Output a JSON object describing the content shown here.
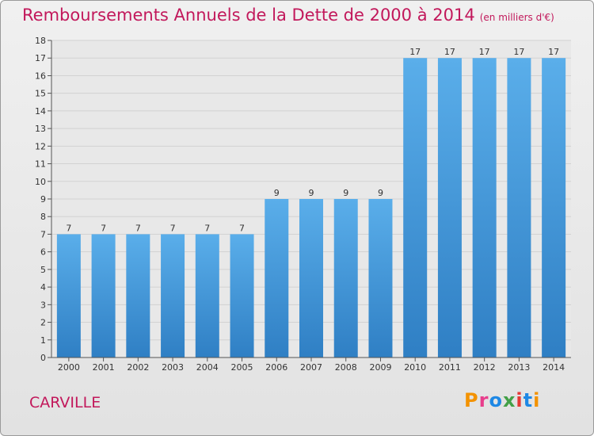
{
  "title": "Remboursements Annuels de la Dette de 2000 à 2014",
  "unit_note": "(en milliers d'€)",
  "city": "CARVILLE",
  "logo": [
    "P",
    "r",
    "o",
    "x",
    "i",
    "t",
    "i"
  ],
  "colors": {
    "bar": "#4a9de0",
    "title": "#c2185b"
  },
  "chart_data": {
    "type": "bar",
    "title": "Remboursements Annuels de la Dette de 2000 à 2014",
    "xlabel": "",
    "ylabel": "",
    "ylim": [
      0,
      18
    ],
    "yticks": [
      0,
      1,
      2,
      3,
      4,
      5,
      6,
      7,
      8,
      9,
      10,
      11,
      12,
      13,
      14,
      15,
      16,
      17,
      18
    ],
    "grid": true,
    "categories": [
      "2000",
      "2001",
      "2002",
      "2003",
      "2004",
      "2005",
      "2006",
      "2007",
      "2008",
      "2009",
      "2010",
      "2011",
      "2012",
      "2013",
      "2014"
    ],
    "values": [
      7,
      7,
      7,
      7,
      7,
      7,
      9,
      9,
      9,
      9,
      17,
      17,
      17,
      17,
      17
    ]
  }
}
